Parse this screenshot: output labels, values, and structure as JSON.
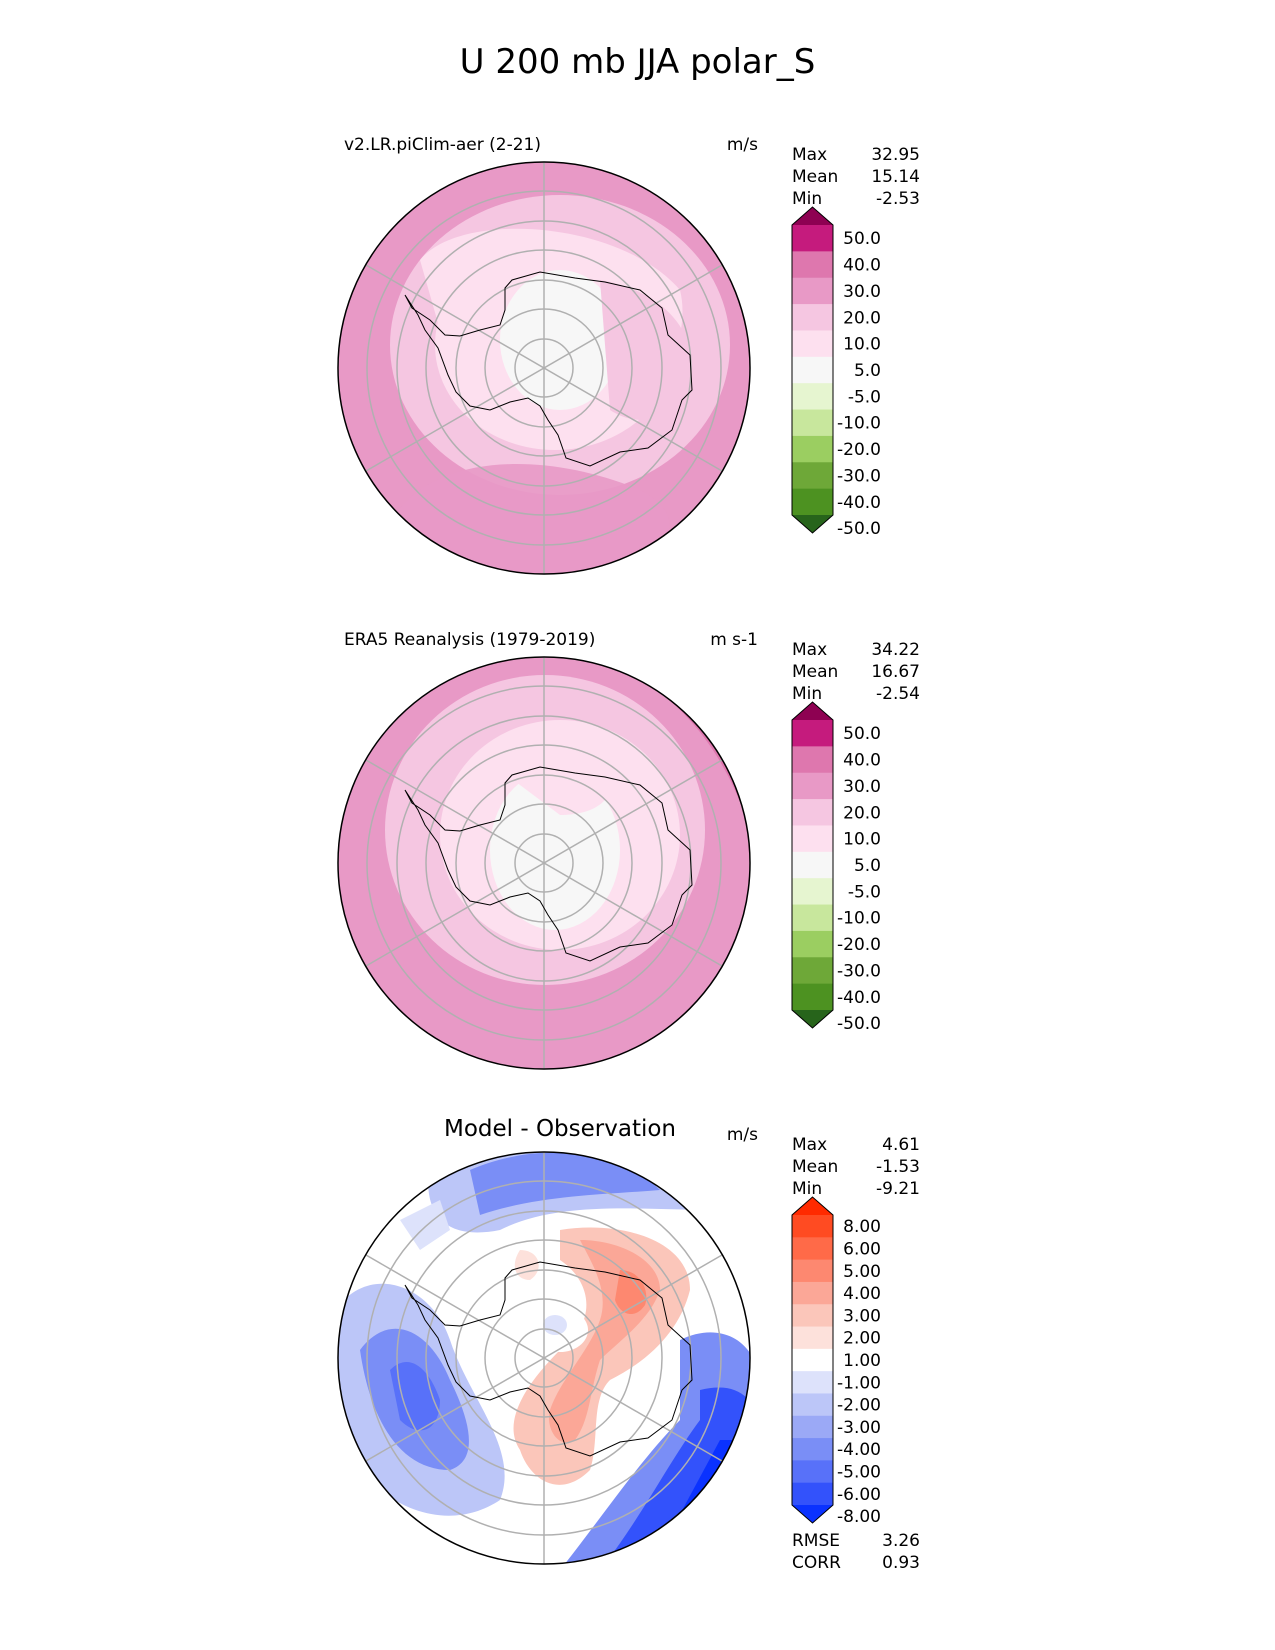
{
  "title": "U 200 mb JJA polar_S",
  "panels": [
    {
      "title": "v2.LR.piClim-aer (2-21)",
      "units": "m/s",
      "stats": [
        {
          "label": "Max",
          "value": "32.95"
        },
        {
          "label": "Mean",
          "value": "15.14"
        },
        {
          "label": "Min",
          "value": "-2.53"
        }
      ],
      "colorbar": {
        "ticks": [
          "50.0",
          "40.0",
          "30.0",
          "20.0",
          "10.0",
          "5.0",
          "-5.0",
          "-10.0",
          "-20.0",
          "-30.0",
          "-40.0",
          "-50.0"
        ],
        "colors": [
          "#8e0152",
          "#c51b7d",
          "#de77ae",
          "#e899c6",
          "#f5c6e1",
          "#fde0ef",
          "#f7f7f7",
          "#e6f5d0",
          "#c8e79d",
          "#9bce61",
          "#6ea838",
          "#4d9221",
          "#27641b"
        ]
      }
    },
    {
      "title": "ERA5 Reanalysis (1979-2019)",
      "units": "m s-1",
      "stats": [
        {
          "label": "Max",
          "value": "34.22"
        },
        {
          "label": "Mean",
          "value": "16.67"
        },
        {
          "label": "Min",
          "value": "-2.54"
        }
      ],
      "colorbar": {
        "ticks": [
          "50.0",
          "40.0",
          "30.0",
          "20.0",
          "10.0",
          "5.0",
          "-5.0",
          "-10.0",
          "-20.0",
          "-30.0",
          "-40.0",
          "-50.0"
        ],
        "colors": [
          "#8e0152",
          "#c51b7d",
          "#de77ae",
          "#e899c6",
          "#f5c6e1",
          "#fde0ef",
          "#f7f7f7",
          "#e6f5d0",
          "#c8e79d",
          "#9bce61",
          "#6ea838",
          "#4d9221",
          "#27641b"
        ]
      }
    },
    {
      "title": "Model - Observation",
      "units": "m/s",
      "stats": [
        {
          "label": "Max",
          "value": "4.61"
        },
        {
          "label": "Mean",
          "value": "-1.53"
        },
        {
          "label": "Min",
          "value": "-9.21"
        }
      ],
      "colorbar": {
        "ticks": [
          "8.00",
          "6.00",
          "5.00",
          "4.00",
          "3.00",
          "2.00",
          "1.00",
          "-1.00",
          "-2.00",
          "-3.00",
          "-4.00",
          "-5.00",
          "-6.00",
          "-8.00"
        ],
        "colors": [
          "#ff2a00",
          "#ff4b22",
          "#ff6a48",
          "#fd8870",
          "#fba797",
          "#fbc6ba",
          "#fde1db",
          "#ffffff",
          "#dde2fb",
          "#bcc6f8",
          "#9ba9f6",
          "#7a8ef6",
          "#5871f9",
          "#3352fb",
          "#0a32ff"
        ]
      },
      "extra_stats": [
        {
          "label": "RMSE",
          "value": "3.26"
        },
        {
          "label": "CORR",
          "value": "0.93"
        }
      ]
    }
  ]
}
